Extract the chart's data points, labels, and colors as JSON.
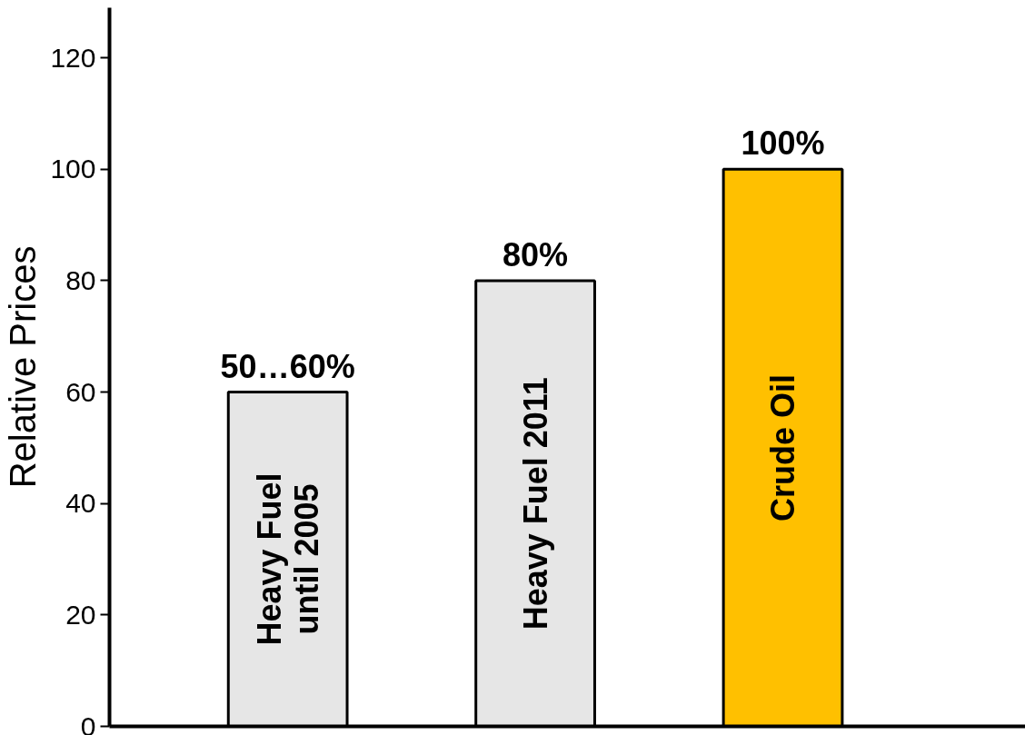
{
  "chart_data": {
    "type": "bar",
    "ylabel": "Relative Prices",
    "categories": [
      "Heavy Fuel\nuntil 2005",
      "Heavy Fuel 2011",
      "Crude Oil"
    ],
    "values": [
      60,
      80,
      100
    ],
    "colors": [
      "#e6e6e6",
      "#e6e6e6",
      "#ffc000"
    ],
    "value_labels": [
      "50…60%",
      "80%",
      "100%"
    ],
    "ylim": [
      0,
      129
    ],
    "yticks": [
      0,
      20,
      40,
      60,
      80,
      100,
      120
    ],
    "grid": false
  }
}
